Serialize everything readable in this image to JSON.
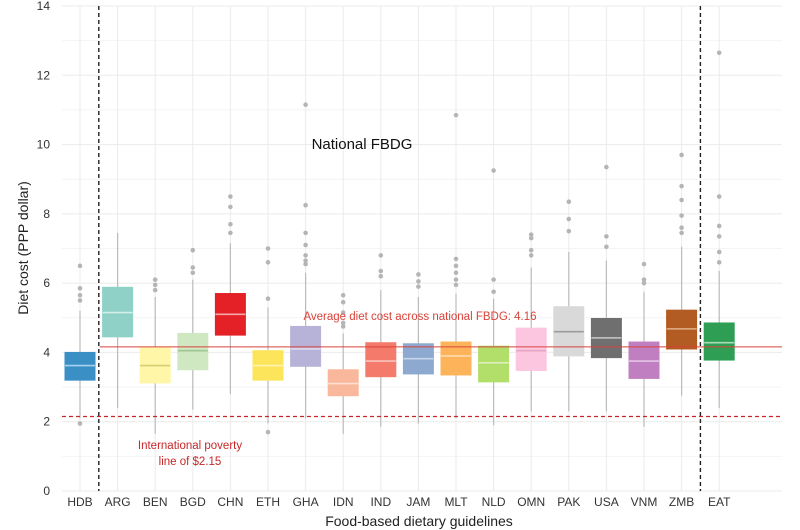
{
  "chart_data": {
    "type": "box",
    "xlabel": "Food-based dietary guidelines",
    "ylabel": "Diet cost (PPP dollar)",
    "ylim": [
      0,
      14
    ],
    "yticks": [
      0,
      2,
      4,
      6,
      8,
      10,
      12,
      14
    ],
    "grid": true,
    "categories": [
      "HDB",
      "ARG",
      "BEN",
      "BGD",
      "CHN",
      "ETH",
      "GHA",
      "IDN",
      "IND",
      "JAM",
      "MLT",
      "NLD",
      "OMN",
      "PAK",
      "USA",
      "VNM",
      "ZMB",
      "EAT"
    ],
    "boxes": [
      {
        "name": "HDB",
        "color": "#3a8fc5",
        "median_color": "#a9d2ee",
        "q1": 3.2,
        "median": 3.62,
        "q3": 4.0,
        "whisker_low": 2.1,
        "whisker_high": 5.2,
        "outliers": [
          1.95,
          5.5,
          5.65,
          5.85,
          6.5
        ]
      },
      {
        "name": "ARG",
        "color": "#8fd1c6",
        "median_color": "#d4efe9",
        "q1": 4.45,
        "median": 5.15,
        "q3": 5.88,
        "whisker_low": 2.4,
        "whisker_high": 7.45,
        "outliers": []
      },
      {
        "name": "BEN",
        "color": "#fff6a8",
        "median_color": "#d8cf72",
        "q1": 3.12,
        "median": 3.62,
        "q3": 4.15,
        "whisker_low": 1.65,
        "whisker_high": 5.6,
        "outliers": [
          5.8,
          5.95,
          6.1
        ]
      },
      {
        "name": "BGD",
        "color": "#cfe8c2",
        "median_color": "#9fc691",
        "q1": 3.5,
        "median": 4.05,
        "q3": 4.55,
        "whisker_low": 2.35,
        "whisker_high": 6.1,
        "outliers": [
          6.3,
          6.45,
          6.95
        ]
      },
      {
        "name": "CHN",
        "color": "#e42127",
        "median_color": "#f6a7a8",
        "q1": 4.5,
        "median": 5.1,
        "q3": 5.7,
        "whisker_low": 2.8,
        "whisker_high": 7.15,
        "outliers": [
          7.45,
          7.7,
          8.2,
          8.5
        ]
      },
      {
        "name": "ETH",
        "color": "#fde55b",
        "median_color": "#fff4b0",
        "q1": 3.2,
        "median": 3.62,
        "q3": 4.05,
        "whisker_low": 1.95,
        "whisker_high": 5.3,
        "outliers": [
          1.7,
          5.55,
          6.6,
          7.0
        ]
      },
      {
        "name": "GHA",
        "color": "#b7b3d8",
        "median_color": "#dddbee",
        "q1": 3.6,
        "median": 4.1,
        "q3": 4.75,
        "whisker_low": 2.1,
        "whisker_high": 6.3,
        "outliers": [
          6.55,
          6.65,
          6.8,
          7.1,
          7.45,
          8.25,
          11.15
        ]
      },
      {
        "name": "IDN",
        "color": "#f9b89c",
        "median_color": "#fde0d3",
        "q1": 2.75,
        "median": 3.1,
        "q3": 3.5,
        "whisker_low": 1.65,
        "whisker_high": 4.55,
        "outliers": [
          4.75,
          4.85,
          5.15,
          5.45,
          5.65
        ]
      },
      {
        "name": "IND",
        "color": "#f47a6b",
        "median_color": "#fbc5be",
        "q1": 3.3,
        "median": 3.75,
        "q3": 4.28,
        "whisker_low": 1.85,
        "whisker_high": 5.8,
        "outliers": [
          6.2,
          6.35,
          6.8
        ]
      },
      {
        "name": "JAM",
        "color": "#8da9cf",
        "median_color": "#c6d5e8",
        "q1": 3.38,
        "median": 3.82,
        "q3": 4.25,
        "whisker_low": 1.95,
        "whisker_high": 5.6,
        "outliers": [
          5.9,
          6.05,
          6.25
        ]
      },
      {
        "name": "MLT",
        "color": "#fdb35a",
        "median_color": "#fedab0",
        "q1": 3.35,
        "median": 3.9,
        "q3": 4.3,
        "whisker_low": 2.1,
        "whisker_high": 5.7,
        "outliers": [
          5.95,
          6.1,
          6.3,
          6.5,
          6.7,
          10.85
        ]
      },
      {
        "name": "NLD",
        "color": "#b2df6a",
        "median_color": "#dcf0bd",
        "q1": 3.15,
        "median": 3.7,
        "q3": 4.18,
        "whisker_low": 1.9,
        "whisker_high": 5.55,
        "outliers": [
          5.75,
          6.1,
          9.25
        ]
      },
      {
        "name": "OMN",
        "color": "#fcc5e0",
        "median_color": "#e5a6c4",
        "q1": 3.48,
        "median": 4.05,
        "q3": 4.7,
        "whisker_low": 2.3,
        "whisker_high": 6.45,
        "outliers": [
          6.8,
          6.95,
          7.3,
          7.4
        ]
      },
      {
        "name": "PAK",
        "color": "#d9d9d9",
        "median_color": "#9c9c9c",
        "q1": 3.9,
        "median": 4.6,
        "q3": 5.32,
        "whisker_low": 2.3,
        "whisker_high": 6.9,
        "outliers": [
          7.5,
          7.85,
          8.35
        ]
      },
      {
        "name": "USA",
        "color": "#6f6f6f",
        "median_color": "#c8c8c8",
        "q1": 3.85,
        "median": 4.42,
        "q3": 4.98,
        "whisker_low": 2.3,
        "whisker_high": 6.65,
        "outliers": [
          7.05,
          7.35,
          9.35
        ]
      },
      {
        "name": "VNM",
        "color": "#c07fc0",
        "median_color": "#e4c4e4",
        "q1": 3.25,
        "median": 3.75,
        "q3": 4.3,
        "whisker_low": 1.85,
        "whisker_high": 5.75,
        "outliers": [
          6.0,
          6.1,
          6.55
        ]
      },
      {
        "name": "ZMB",
        "color": "#b25b22",
        "median_color": "#e1b08c",
        "q1": 4.1,
        "median": 4.68,
        "q3": 5.22,
        "whisker_low": 2.75,
        "whisker_high": 7.05,
        "outliers": [
          7.45,
          7.6,
          7.95,
          8.4,
          8.8,
          9.7
        ]
      },
      {
        "name": "EAT",
        "color": "#2f9e55",
        "median_color": "#a8dcb8",
        "q1": 3.78,
        "median": 4.28,
        "q3": 4.85,
        "whisker_low": 2.4,
        "whisker_high": 6.35,
        "outliers": [
          6.6,
          6.9,
          7.35,
          7.65,
          8.5,
          12.65
        ]
      }
    ],
    "reference_lines": {
      "average": {
        "value": 4.16,
        "label": "Average diet cost across national FBDG: 4.16",
        "color": "#d9433a"
      },
      "poverty": {
        "value": 2.15,
        "label_line1": "International poverty",
        "label_line2": "line of $2.15",
        "color": "#c62828"
      }
    },
    "group_separators_after": [
      "HDB",
      "ZMB"
    ],
    "group_annotation": "National FBDG",
    "colors": {
      "whisker": "#bbbbbb",
      "outlier": "#b5b5b5",
      "grid": "#ebebeb",
      "separator": "#222222"
    }
  }
}
